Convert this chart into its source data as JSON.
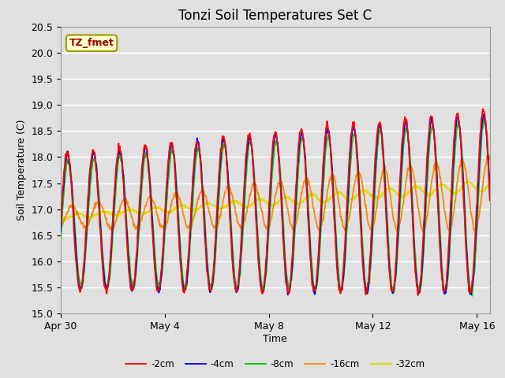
{
  "title": "Tonzi Soil Temperatures Set C",
  "xlabel": "Time",
  "ylabel": "Soil Temperature (C)",
  "ylim": [
    15.0,
    20.5
  ],
  "xlim_start": 0.0,
  "xlim_end": 16.5,
  "xtick_positions": [
    0,
    4,
    8,
    12,
    16
  ],
  "xtick_labels": [
    "Apr 30",
    "May 4",
    "May 8",
    "May 12",
    "May 16"
  ],
  "annotation_text": "TZ_fmet",
  "annotation_bg": "#ffffcc",
  "annotation_border": "#999900",
  "annotation_text_color": "#990000",
  "series_colors": [
    "#ff0000",
    "#0000ff",
    "#00cc00",
    "#ff8800",
    "#dddd00"
  ],
  "series_labels": [
    "-2cm",
    "-4cm",
    "-8cm",
    "-16cm",
    "-32cm"
  ],
  "series_linewidths": [
    1.3,
    1.3,
    1.3,
    1.3,
    1.5
  ],
  "bg_color": "#e0e0e0",
  "plot_bg_color": "#e0e0e0",
  "grid_color": "#ffffff",
  "n_points": 800,
  "total_days": 16.5,
  "trend_2cm": [
    16.75,
    17.15
  ],
  "trend_4cm": [
    16.75,
    17.1
  ],
  "trend_8cm": [
    16.72,
    17.05
  ],
  "trend_16cm": [
    16.85,
    17.3
  ],
  "trend_32cm": [
    16.85,
    17.45
  ],
  "amp_2cm": [
    1.3,
    1.75
  ],
  "amp_4cm": [
    1.28,
    1.72
  ],
  "amp_8cm": [
    1.2,
    1.65
  ],
  "amp_16cm": [
    0.2,
    0.7
  ],
  "amp_32cm": [
    0.04,
    0.1
  ],
  "phase_2cm": 0.0,
  "phase_4cm": -0.1,
  "phase_8cm": -0.25,
  "phase_16cm": -1.2,
  "phase_32cm": -2.5
}
